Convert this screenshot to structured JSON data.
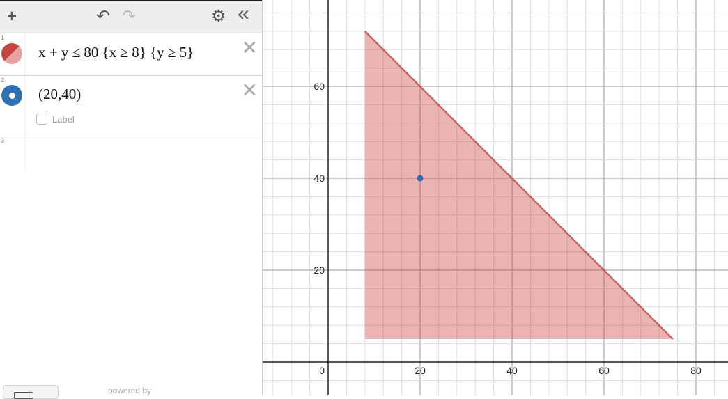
{
  "toolbar": {
    "add": "+",
    "undo": "↶",
    "redo": "↷",
    "settings": "⚙",
    "collapse": "«"
  },
  "expressions": [
    {
      "index": "1",
      "latex": "x + y ≤ 80 {x ≥ 8} {y ≥ 5}",
      "color": "#c74440"
    },
    {
      "index": "2",
      "latex": "(20,40)",
      "color": "#2d70b3",
      "label_option": "Label"
    },
    {
      "index": "3"
    }
  ],
  "footer": {
    "powered_by": "powered by"
  },
  "chart_data": {
    "type": "scatter",
    "xlim": [
      -14.2,
      87
    ],
    "ylim": [
      -7.1,
      78.8
    ],
    "x_ticks": [
      "0",
      "20",
      "40",
      "60",
      "80"
    ],
    "y_ticks": [
      "20",
      "40",
      "60"
    ],
    "grid": true,
    "region": {
      "inequality": "x + y ≤ 80",
      "restrictions": [
        "x ≥ 8",
        "y ≥ 5"
      ],
      "vertices": [
        [
          8,
          72
        ],
        [
          8,
          5
        ],
        [
          75,
          5
        ]
      ],
      "color": "#c74440"
    },
    "points": [
      {
        "x": 20,
        "y": 40,
        "color": "#2d70b3"
      }
    ]
  }
}
